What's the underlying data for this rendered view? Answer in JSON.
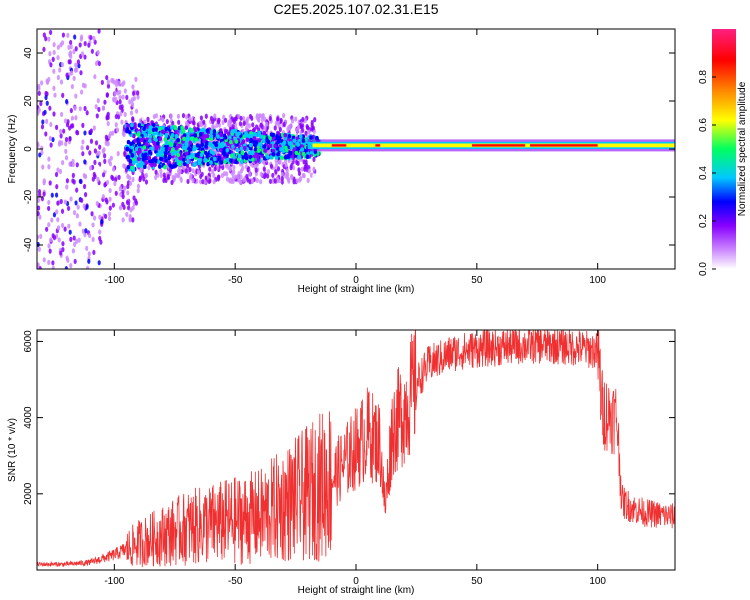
{
  "title": "C2E5.2025.107.02.31.E15",
  "colors": {
    "accent": "#f03030",
    "axis": "#000000",
    "background": "#ffffff"
  },
  "chart_data": [
    {
      "type": "heatmap",
      "xlabel": "Height of straight line (km)",
      "ylabel": "Frequency (Hz)",
      "xlim": [
        -132,
        132
      ],
      "ylim": [
        -50,
        50
      ],
      "xticks": [
        -100,
        -50,
        0,
        50,
        100
      ],
      "yticks": [
        -40,
        -20,
        0,
        20,
        40
      ],
      "colorbar": {
        "label": "Normalized spectral amplitude",
        "range": [
          0,
          1
        ],
        "ticks": [
          0.0,
          0.2,
          0.4,
          0.6,
          0.8
        ],
        "colormap": [
          "#ffffff",
          "#cc88ff",
          "#8800ff",
          "#0000ff",
          "#00c8ff",
          "#00ff60",
          "#ffff00",
          "#ff8000",
          "#ff0000",
          "#ff2080"
        ]
      },
      "description_series": [
        {
          "name": "central band",
          "x_range": [
            -20,
            132
          ],
          "freq_center": 1.5,
          "freq_halfwidth": 1.5
        },
        {
          "name": "broad scatter",
          "x_range": [
            -132,
            -20
          ],
          "freq_spread": [
            -50,
            50
          ]
        }
      ]
    },
    {
      "type": "line",
      "xlabel": "Height of straight line (km)",
      "ylabel": "SNR (10 * v/v)",
      "xlim": [
        -132,
        132
      ],
      "ylim": [
        0,
        6300
      ],
      "xticks": [
        -100,
        -50,
        0,
        50,
        100
      ],
      "yticks": [
        2000,
        4000,
        6000
      ],
      "series": [
        {
          "color": "#f03030",
          "x": [
            -132,
            -120,
            -110,
            -100,
            -90,
            -80,
            -70,
            -60,
            -50,
            -40,
            -30,
            -20,
            -10,
            -5,
            0,
            5,
            10,
            12,
            15,
            20,
            25,
            30,
            40,
            50,
            60,
            70,
            80,
            90,
            95,
            100,
            102,
            104,
            108,
            110,
            115,
            120,
            125,
            132
          ],
          "y": [
            150,
            150,
            200,
            400,
            700,
            900,
            1100,
            1200,
            1300,
            1400,
            1700,
            2000,
            2400,
            2800,
            3200,
            3600,
            3300,
            1600,
            3700,
            4200,
            4900,
            5400,
            5700,
            5800,
            5850,
            5900,
            5900,
            5850,
            5800,
            5750,
            4200,
            4100,
            4000,
            1800,
            1600,
            1500,
            1450,
            1400
          ]
        }
      ]
    }
  ]
}
